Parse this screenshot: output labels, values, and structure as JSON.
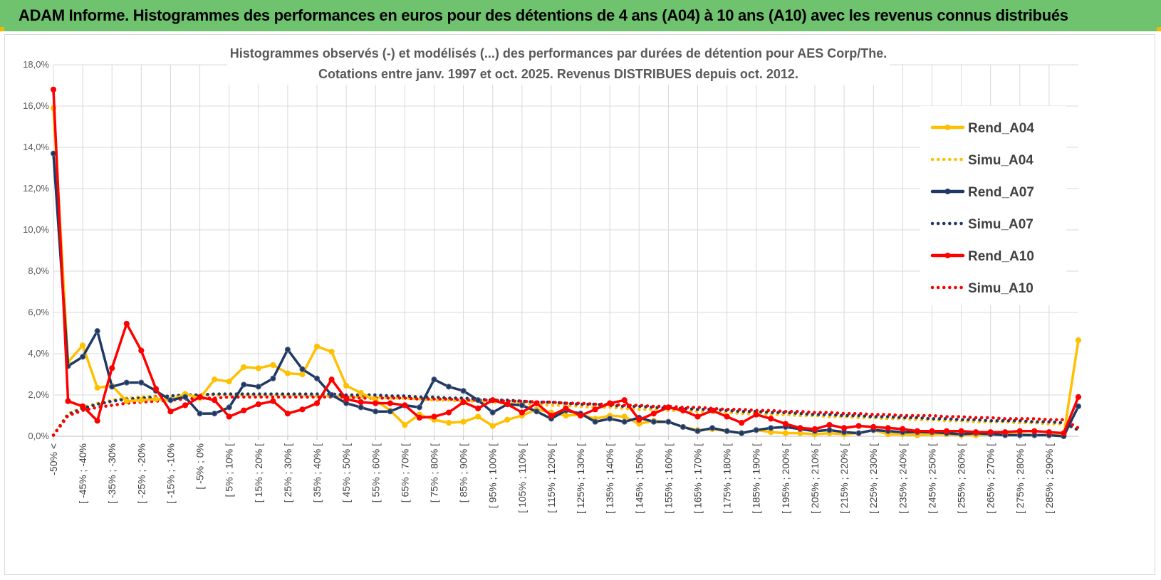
{
  "page_title": "ADAM Informe. Histogrammes des performances en euros pour des détentions de 4 ans (A04) à 10 ans (A10) avec les revenus connus distribués",
  "chart_data": {
    "type": "line",
    "title": "Histogrammes observés (-) et modélisés (...) des performances par durées de détention pour AES Corp/The.",
    "subtitle": "Cotations entre janv. 1997 et oct. 2025.  Revenus DISTRIBUES depuis oct. 2012.",
    "ylim": [
      0,
      18
    ],
    "ytick_values": [
      0,
      2,
      4,
      6,
      8,
      10,
      12,
      14,
      16,
      18
    ],
    "ytick_labels": [
      "0,0%",
      "2,0%",
      "4,0%",
      "6,0%",
      "8,0%",
      "10,0%",
      "12,0%",
      "14,0%",
      "16,0%",
      "18,0%"
    ],
    "grid": true,
    "legend_position": "right",
    "categories": [
      "-50% <",
      "[ -50% ; -45%",
      "[ -45% ; -40%",
      "[ -40% ; -35%",
      "[ -35% ; -30%",
      "[ -30% ; -25%",
      "[ -25% ; -20%",
      "[ -20% ; -15%",
      "[ -15% ; -10%",
      "[ -10% ; -5%",
      "[ -5% ; 0%",
      "[ 0% ; 5%",
      "[ 5% ; 10% [",
      "[ 10% ; 15%",
      "[ 15% ; 20% [",
      "[ 20% ; 25%",
      "[ 25% ; 30% [",
      "[ 30% ; 35%",
      "[ 35% ; 40% [",
      "[ 40% ; 45%",
      "[ 45% ; 50% [",
      "[ 50% ; 55%",
      "[ 55% ; 60% [",
      "[ 60% ; 65%",
      "[ 65% ; 70% [",
      "[ 70% ; 75%",
      "[ 75% ; 80% [",
      "[ 80% ; 85%",
      "[ 85% ; 90% [",
      "[ 90% ; 95%",
      "[ 95% ; 100% [",
      "[ 100% ; 105%",
      "[ 105% ; 110% [",
      "[ 110% ; 115%",
      "[ 115% ; 120% [",
      "[ 120% ; 125%",
      "[ 125% ; 130% [",
      "[ 130% ; 135%",
      "[ 135% ; 140% [",
      "[ 140% ; 145%",
      "[ 145% ; 150% [",
      "[ 150% ; 155%",
      "[ 155% ; 160% [",
      "[ 160% ; 165%",
      "[ 165% ; 170% [",
      "[ 170% ; 175%",
      "[ 175% ; 180% [",
      "[ 180% ; 185%",
      "[ 185% ; 190% [",
      "[ 190% ; 195%",
      "[ 195% ; 200% [",
      "[ 200% ; 205%",
      "[ 205% ; 210% [",
      "[ 210% ; 215%",
      "[ 215% ; 220% [",
      "[ 220% ; 225%",
      "[ 225% ; 230% [",
      "[ 230% ; 235%",
      "[ 235% ; 240% [",
      "[ 240% ; 245%",
      "[ 245% ; 250% [",
      "[ 250% ; 255%",
      "[ 255% ; 260% [",
      "[ 260% ; 265%",
      "[ 265% ; 270% [",
      "[ 270% ; 275%",
      "[ 275% ; 280% [",
      "[ 280% ; 285%",
      "[ 285% ; 290% [",
      "[ 290% ; 295%",
      ">= 295%"
    ],
    "xtick_labels": [
      "-50% <",
      "[ -45% ; -40%",
      "[ -35% ; -30%",
      "[ -25% ; -20%",
      "[ -15% ; -10%",
      "[ -5% ; 0%",
      "[ 5% ; 10% [",
      "[ 15% ; 20% [",
      "[ 25% ; 30% [",
      "[ 35% ; 40% [",
      "[ 45% ; 50% [",
      "[ 55% ; 60% [",
      "[ 65% ; 70% [",
      "[ 75% ; 80% [",
      "[ 85% ; 90% [",
      "[ 95% ; 100% [",
      "[ 105% ; 110% [",
      "[ 115% ; 120% [",
      "[ 125% ; 130% [",
      "[ 135% ; 140% [",
      "[ 145% ; 150% [",
      "[ 155% ; 160% [",
      "[ 165% ; 170% [",
      "[ 175% ; 180% [",
      "[ 185% ; 190% [",
      "[ 195% ; 200% [",
      "[ 205% ; 210% [",
      "[ 215% ; 220% [",
      "[ 225% ; 230% [",
      "[ 235% ; 240% [",
      "[ 245% ; 250% [",
      "[ 255% ; 260% [",
      "[ 265% ; 270% [",
      "[ 275% ; 280% [",
      "[ 285% ; 290% ["
    ],
    "series": [
      {
        "name": "Rend_A04",
        "style": "solid",
        "color": "#ffc000",
        "values": [
          15.9,
          3.6,
          4.4,
          2.35,
          2.45,
          1.7,
          1.75,
          1.8,
          1.75,
          2.05,
          1.85,
          2.75,
          2.65,
          3.35,
          3.3,
          3.45,
          3.05,
          3.0,
          4.35,
          4.1,
          2.45,
          2.1,
          1.75,
          1.25,
          0.55,
          1.05,
          0.8,
          0.65,
          0.7,
          0.95,
          0.5,
          0.8,
          1.0,
          1.3,
          1.15,
          1.0,
          1.05,
          0.85,
          1.0,
          0.95,
          0.6,
          0.75,
          0.7,
          0.45,
          0.3,
          0.35,
          0.25,
          0.15,
          0.3,
          0.2,
          0.15,
          0.15,
          0.1,
          0.15,
          0.1,
          0.15,
          0.3,
          0.1,
          0.1,
          0.05,
          0.1,
          0.1,
          0.05,
          0.05,
          0.1,
          0.1,
          0.1,
          0.05,
          0.05,
          0.05,
          4.65
        ]
      },
      {
        "name": "Simu_A04",
        "style": "dotted",
        "color": "#ffc000",
        "values": [
          0.05,
          1.1,
          1.4,
          1.6,
          1.75,
          1.85,
          1.9,
          1.95,
          1.95,
          2.0,
          2.0,
          2.0,
          2.0,
          2.0,
          2.0,
          2.0,
          2.0,
          2.0,
          1.95,
          1.95,
          1.95,
          1.9,
          1.9,
          1.85,
          1.85,
          1.8,
          1.75,
          1.75,
          1.7,
          1.7,
          1.65,
          1.6,
          1.6,
          1.55,
          1.5,
          1.5,
          1.45,
          1.4,
          1.4,
          1.35,
          1.3,
          1.3,
          1.25,
          1.25,
          1.2,
          1.15,
          1.15,
          1.1,
          1.1,
          1.05,
          1.05,
          1.0,
          1.0,
          0.95,
          0.95,
          0.9,
          0.9,
          0.85,
          0.85,
          0.8,
          0.8,
          0.75,
          0.75,
          0.7,
          0.7,
          0.7,
          0.65,
          0.65,
          0.6,
          0.6,
          0.3
        ]
      },
      {
        "name": "Rend_A07",
        "style": "solid",
        "color": "#1f3864",
        "values": [
          13.7,
          3.4,
          3.85,
          5.1,
          2.4,
          2.6,
          2.6,
          2.2,
          1.75,
          1.9,
          1.1,
          1.1,
          1.4,
          2.5,
          2.4,
          2.8,
          4.2,
          3.25,
          2.8,
          2.0,
          1.6,
          1.4,
          1.2,
          1.2,
          1.5,
          1.4,
          2.75,
          2.4,
          2.2,
          1.75,
          1.15,
          1.55,
          1.5,
          1.2,
          0.85,
          1.25,
          1.1,
          0.7,
          0.85,
          0.7,
          0.9,
          0.7,
          0.7,
          0.45,
          0.25,
          0.4,
          0.25,
          0.15,
          0.3,
          0.4,
          0.45,
          0.35,
          0.25,
          0.3,
          0.2,
          0.15,
          0.3,
          0.25,
          0.2,
          0.2,
          0.2,
          0.15,
          0.1,
          0.15,
          0.1,
          0.05,
          0.05,
          0.05,
          0.05,
          0.0,
          1.45
        ]
      },
      {
        "name": "Simu_A07",
        "style": "dotted",
        "color": "#1f3864",
        "values": [
          0.05,
          1.05,
          1.35,
          1.55,
          1.7,
          1.8,
          1.85,
          1.9,
          1.95,
          2.0,
          2.0,
          2.05,
          2.05,
          2.05,
          2.05,
          2.05,
          2.05,
          2.05,
          2.05,
          2.05,
          2.0,
          2.0,
          2.0,
          1.95,
          1.95,
          1.9,
          1.9,
          1.85,
          1.85,
          1.8,
          1.75,
          1.75,
          1.7,
          1.65,
          1.65,
          1.6,
          1.55,
          1.55,
          1.5,
          1.45,
          1.45,
          1.4,
          1.35,
          1.35,
          1.3,
          1.3,
          1.25,
          1.2,
          1.2,
          1.15,
          1.15,
          1.1,
          1.05,
          1.05,
          1.0,
          1.0,
          0.95,
          0.95,
          0.9,
          0.9,
          0.85,
          0.85,
          0.8,
          0.8,
          0.75,
          0.75,
          0.75,
          0.7,
          0.7,
          0.65,
          0.3
        ]
      },
      {
        "name": "Rend_A10",
        "style": "solid",
        "color": "#ff0000",
        "values": [
          16.8,
          1.7,
          1.45,
          0.75,
          3.3,
          5.45,
          4.15,
          2.3,
          1.2,
          1.5,
          1.9,
          1.75,
          0.95,
          1.25,
          1.55,
          1.7,
          1.1,
          1.3,
          1.6,
          2.75,
          1.8,
          1.65,
          1.6,
          1.6,
          1.5,
          0.9,
          0.95,
          1.15,
          1.65,
          1.35,
          1.75,
          1.55,
          1.15,
          1.6,
          1.0,
          1.35,
          1.0,
          1.3,
          1.6,
          1.75,
          0.8,
          1.1,
          1.4,
          1.25,
          0.95,
          1.25,
          0.95,
          0.65,
          1.05,
          0.85,
          0.6,
          0.4,
          0.35,
          0.55,
          0.4,
          0.5,
          0.45,
          0.4,
          0.35,
          0.25,
          0.25,
          0.25,
          0.25,
          0.2,
          0.2,
          0.2,
          0.25,
          0.25,
          0.2,
          0.15,
          1.9
        ]
      },
      {
        "name": "Simu_A10",
        "style": "dotted",
        "color": "#ff0000",
        "values": [
          0.05,
          1.0,
          1.25,
          1.4,
          1.5,
          1.6,
          1.65,
          1.7,
          1.75,
          1.8,
          1.85,
          1.85,
          1.9,
          1.9,
          1.9,
          1.9,
          1.9,
          1.9,
          1.9,
          1.9,
          1.9,
          1.85,
          1.85,
          1.85,
          1.85,
          1.8,
          1.8,
          1.8,
          1.75,
          1.75,
          1.75,
          1.7,
          1.7,
          1.65,
          1.65,
          1.6,
          1.6,
          1.55,
          1.55,
          1.5,
          1.5,
          1.45,
          1.45,
          1.4,
          1.4,
          1.35,
          1.3,
          1.3,
          1.25,
          1.25,
          1.2,
          1.2,
          1.15,
          1.15,
          1.1,
          1.1,
          1.05,
          1.05,
          1.0,
          1.0,
          1.0,
          0.95,
          0.95,
          0.9,
          0.9,
          0.85,
          0.85,
          0.85,
          0.8,
          0.8,
          0.4
        ]
      }
    ]
  }
}
